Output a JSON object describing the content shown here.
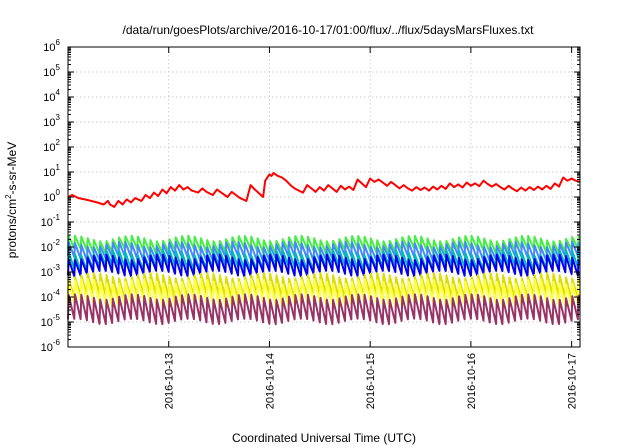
{
  "chart_data": {
    "type": "line",
    "title": "/data/run/goesPlots/archive/2016-10-17/01:00/flux/../flux/5daysMarsFluxes.txt",
    "xlabel": "Coordinated Universal Time (UTC)",
    "ylabel_parts": [
      "protons/cm",
      "2",
      "-s-sr-MeV"
    ],
    "yscale": "log",
    "ylim": [
      1e-06,
      1000000.0
    ],
    "xlim": [
      "2016-10-12T00:00",
      "2016-10-17T02:00"
    ],
    "grid": true,
    "legend": "none",
    "x_ticks": [
      {
        "t": "2016-10-13T00:00",
        "label": "2016-10-13"
      },
      {
        "t": "2016-10-14T00:00",
        "label": "2016-10-14"
      },
      {
        "t": "2016-10-15T00:00",
        "label": "2016-10-15"
      },
      {
        "t": "2016-10-16T00:00",
        "label": "2016-10-16"
      },
      {
        "t": "2016-10-17T00:00",
        "label": "2016-10-17"
      }
    ],
    "y_ticks": [
      {
        "v": 1e-06,
        "base": "10",
        "exp": "-6"
      },
      {
        "v": 1e-05,
        "base": "10",
        "exp": "-5"
      },
      {
        "v": 0.0001,
        "base": "10",
        "exp": "-4"
      },
      {
        "v": 0.001,
        "base": "10",
        "exp": "-3"
      },
      {
        "v": 0.01,
        "base": "10",
        "exp": "-2"
      },
      {
        "v": 0.1,
        "base": "10",
        "exp": "-1"
      },
      {
        "v": 1.0,
        "base": "10",
        "exp": "0"
      },
      {
        "v": 10.0,
        "base": "10",
        "exp": "1"
      },
      {
        "v": 100.0,
        "base": "10",
        "exp": "2"
      },
      {
        "v": 1000.0,
        "base": "10",
        "exp": "3"
      },
      {
        "v": 10000.0,
        "base": "10",
        "exp": "4"
      },
      {
        "v": 100000.0,
        "base": "10",
        "exp": "5"
      },
      {
        "v": 1000000.0,
        "base": "10",
        "exp": "6"
      }
    ],
    "series": [
      {
        "color": "#ff0000",
        "values": [
          [
            "2016-10-12T00:00",
            1.0
          ],
          [
            "2016-10-12T01:00",
            1.2
          ],
          [
            "2016-10-12T02:30",
            0.9
          ],
          [
            "2016-10-12T04:00",
            0.8
          ],
          [
            "2016-10-12T05:30",
            0.7
          ],
          [
            "2016-10-12T07:00",
            0.6
          ],
          [
            "2016-10-12T08:30",
            0.5
          ],
          [
            "2016-10-12T09:30",
            0.7
          ],
          [
            "2016-10-12T10:00",
            0.5
          ],
          [
            "2016-10-12T11:00",
            0.4
          ],
          [
            "2016-10-12T12:00",
            0.7
          ],
          [
            "2016-10-12T13:00",
            0.5
          ],
          [
            "2016-10-12T14:00",
            0.8
          ],
          [
            "2016-10-12T15:00",
            0.6
          ],
          [
            "2016-10-12T16:00",
            0.9
          ],
          [
            "2016-10-12T17:30",
            0.7
          ],
          [
            "2016-10-12T18:30",
            1.2
          ],
          [
            "2016-10-12T19:30",
            0.9
          ],
          [
            "2016-10-12T20:30",
            1.5
          ],
          [
            "2016-10-12T21:30",
            1.1
          ],
          [
            "2016-10-12T22:30",
            2.0
          ],
          [
            "2016-10-12T23:30",
            1.4
          ],
          [
            "2016-10-13T00:30",
            2.5
          ],
          [
            "2016-10-13T01:30",
            1.8
          ],
          [
            "2016-10-13T02:30",
            3.0
          ],
          [
            "2016-10-13T03:30",
            2.0
          ],
          [
            "2016-10-13T04:30",
            2.5
          ],
          [
            "2016-10-13T05:30",
            1.8
          ],
          [
            "2016-10-13T07:00",
            1.5
          ],
          [
            "2016-10-13T08:00",
            2.2
          ],
          [
            "2016-10-13T09:00",
            1.6
          ],
          [
            "2016-10-13T10:30",
            1.2
          ],
          [
            "2016-10-13T11:30",
            2.0
          ],
          [
            "2016-10-13T12:30",
            1.5
          ],
          [
            "2016-10-13T14:00",
            1.0
          ],
          [
            "2016-10-13T15:00",
            1.6
          ],
          [
            "2016-10-13T16:00",
            1.2
          ],
          [
            "2016-10-13T17:00",
            0.9
          ],
          [
            "2016-10-13T18:30",
            0.7
          ],
          [
            "2016-10-13T19:30",
            3.0
          ],
          [
            "2016-10-13T20:30",
            2.0
          ],
          [
            "2016-10-13T21:30",
            1.4
          ],
          [
            "2016-10-13T22:30",
            1.0
          ],
          [
            "2016-10-13T23:00",
            4.5
          ],
          [
            "2016-10-13T23:59",
            8.0
          ],
          [
            "2016-10-14T00:30",
            7.0
          ],
          [
            "2016-10-14T01:00",
            9.0
          ],
          [
            "2016-10-14T02:00",
            7.0
          ],
          [
            "2016-10-14T03:00",
            6.0
          ],
          [
            "2016-10-14T04:00",
            4.5
          ],
          [
            "2016-10-14T05:00",
            3.0
          ],
          [
            "2016-10-14T06:00",
            2.2
          ],
          [
            "2016-10-14T07:00",
            1.8
          ],
          [
            "2016-10-14T08:00",
            1.5
          ],
          [
            "2016-10-14T09:00",
            3.0
          ],
          [
            "2016-10-14T10:00",
            2.2
          ],
          [
            "2016-10-14T11:00",
            1.6
          ],
          [
            "2016-10-14T12:00",
            2.5
          ],
          [
            "2016-10-14T13:00",
            1.8
          ],
          [
            "2016-10-14T14:00",
            3.0
          ],
          [
            "2016-10-14T15:00",
            2.2
          ],
          [
            "2016-10-14T16:00",
            1.6
          ],
          [
            "2016-10-14T17:00",
            2.8
          ],
          [
            "2016-10-14T18:00",
            2.0
          ],
          [
            "2016-10-14T19:00",
            2.6
          ],
          [
            "2016-10-14T20:00",
            1.9
          ],
          [
            "2016-10-14T21:00",
            5.0
          ],
          [
            "2016-10-14T22:00",
            3.5
          ],
          [
            "2016-10-14T23:00",
            2.5
          ],
          [
            "2016-10-14T23:59",
            5.5
          ],
          [
            "2016-10-15T01:00",
            4.0
          ],
          [
            "2016-10-15T02:00",
            5.0
          ],
          [
            "2016-10-15T03:00",
            3.8
          ],
          [
            "2016-10-15T04:00",
            2.8
          ],
          [
            "2016-10-15T05:00",
            4.0
          ],
          [
            "2016-10-15T06:00",
            3.0
          ],
          [
            "2016-10-15T07:00",
            2.2
          ],
          [
            "2016-10-15T08:00",
            3.0
          ],
          [
            "2016-10-15T09:00",
            2.2
          ],
          [
            "2016-10-15T10:00",
            1.8
          ],
          [
            "2016-10-15T11:00",
            2.5
          ],
          [
            "2016-10-15T12:00",
            1.9
          ],
          [
            "2016-10-15T13:00",
            2.4
          ],
          [
            "2016-10-15T14:00",
            1.8
          ],
          [
            "2016-10-15T15:00",
            2.6
          ],
          [
            "2016-10-15T16:00",
            2.0
          ],
          [
            "2016-10-15T17:00",
            2.8
          ],
          [
            "2016-10-15T18:00",
            2.1
          ],
          [
            "2016-10-15T19:00",
            3.5
          ],
          [
            "2016-10-15T20:00",
            2.5
          ],
          [
            "2016-10-15T21:00",
            3.2
          ],
          [
            "2016-10-15T22:00",
            2.4
          ],
          [
            "2016-10-15T23:00",
            3.8
          ],
          [
            "2016-10-16T00:00",
            2.8
          ],
          [
            "2016-10-16T01:00",
            3.5
          ],
          [
            "2016-10-16T02:00",
            2.7
          ],
          [
            "2016-10-16T03:00",
            4.5
          ],
          [
            "2016-10-16T04:00",
            3.3
          ],
          [
            "2016-10-16T05:00",
            2.6
          ],
          [
            "2016-10-16T06:00",
            3.3
          ],
          [
            "2016-10-16T07:00",
            2.5
          ],
          [
            "2016-10-16T08:00",
            2.0
          ],
          [
            "2016-10-16T09:00",
            2.8
          ],
          [
            "2016-10-16T10:00",
            2.1
          ],
          [
            "2016-10-16T11:00",
            1.7
          ],
          [
            "2016-10-16T12:00",
            2.4
          ],
          [
            "2016-10-16T13:00",
            1.8
          ],
          [
            "2016-10-16T14:00",
            2.5
          ],
          [
            "2016-10-16T15:00",
            1.9
          ],
          [
            "2016-10-16T16:00",
            2.6
          ],
          [
            "2016-10-16T17:00",
            2.0
          ],
          [
            "2016-10-16T18:00",
            2.8
          ],
          [
            "2016-10-16T19:00",
            2.1
          ],
          [
            "2016-10-16T20:00",
            3.5
          ],
          [
            "2016-10-16T21:00",
            2.6
          ],
          [
            "2016-10-16T22:00",
            6.0
          ],
          [
            "2016-10-16T23:00",
            4.5
          ],
          [
            "2016-10-17T00:00",
            5.5
          ],
          [
            "2016-10-17T01:00",
            4.5
          ],
          [
            "2016-10-17T02:00",
            4.0
          ]
        ]
      },
      {
        "color": "#44ee44",
        "base": 0.008,
        "amp": 2.8
      },
      {
        "color": "#4488ff",
        "base": 0.004,
        "amp": 3.2
      },
      {
        "color": "#00bbbb",
        "base": 0.0017,
        "amp": 3.5
      },
      {
        "color": "#0000ee",
        "base": 0.001,
        "amp": 4.0
      },
      {
        "color": "#dddd00",
        "base": 0.00012,
        "amp": 6.0
      },
      {
        "color": "#ffff44",
        "base": 6e-05,
        "amp": 7.0
      },
      {
        "color": "#993366",
        "base": 1.2e-05,
        "amp": 8.5
      }
    ]
  }
}
